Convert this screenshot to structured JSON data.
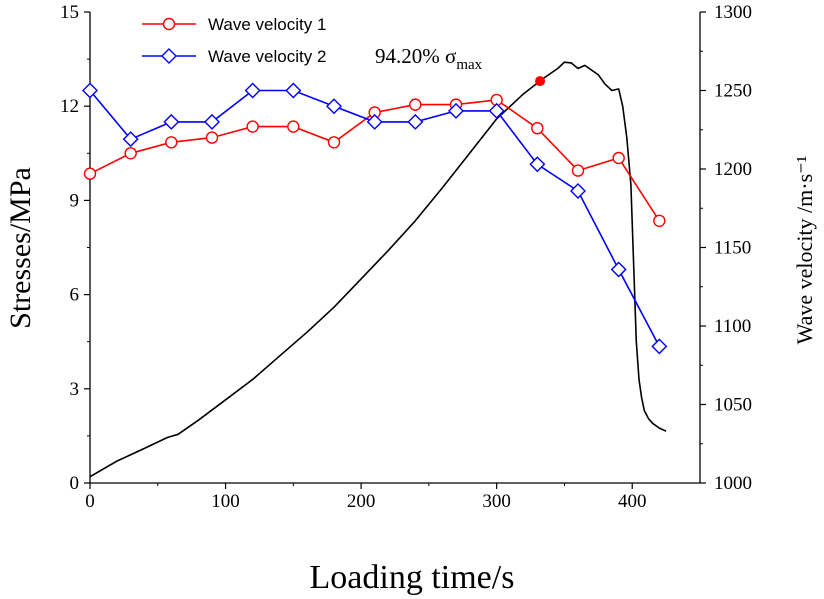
{
  "chart_data": {
    "type": "line",
    "xlabel": "Loading time/s",
    "ylabel_left": "Stresses/MPa",
    "ylabel_right": "Wave velocity /m·s⁻¹",
    "xlim": [
      0,
      450
    ],
    "ylim_left": [
      0,
      15
    ],
    "ylim_right": [
      1000,
      1300
    ],
    "xticks": [
      "0",
      "100",
      "200",
      "300",
      "400"
    ],
    "yticks_left": [
      "0",
      "3",
      "6",
      "9",
      "12",
      "15"
    ],
    "yticks_right": [
      "1000",
      "1050",
      "1100",
      "1150",
      "1200",
      "1250",
      "1300"
    ],
    "annotation": {
      "text": "94.20% σ",
      "subscript": "max",
      "x": 332,
      "y_stress": 12.8,
      "color": "#ff0000"
    },
    "stress_series": {
      "name": "Stress",
      "color": "#000000",
      "x": [
        0,
        20,
        40,
        57,
        65,
        80,
        100,
        120,
        140,
        160,
        180,
        200,
        220,
        240,
        260,
        280,
        300,
        320,
        335,
        345,
        350,
        355,
        360,
        365,
        370,
        375,
        380,
        385,
        390,
        393,
        396,
        399,
        401,
        403,
        405,
        407,
        409,
        412,
        415,
        420,
        425
      ],
      "y": [
        0.2,
        0.7,
        1.1,
        1.45,
        1.55,
        2.0,
        2.65,
        3.3,
        4.05,
        4.8,
        5.6,
        6.5,
        7.4,
        8.35,
        9.4,
        10.5,
        11.6,
        12.4,
        12.9,
        13.2,
        13.4,
        13.38,
        13.2,
        13.3,
        13.15,
        13.0,
        12.7,
        12.5,
        12.55,
        12.0,
        11.0,
        9.5,
        7.0,
        4.5,
        3.3,
        2.7,
        2.3,
        2.05,
        1.9,
        1.75,
        1.65
      ]
    },
    "velocity_series": [
      {
        "name": "Wave velocity 1",
        "color": "#ff0000",
        "marker": "circle",
        "x": [
          0,
          30,
          60,
          90,
          120,
          150,
          180,
          210,
          240,
          270,
          300,
          330,
          360,
          390,
          420
        ],
        "y": [
          1197,
          1210,
          1217,
          1220,
          1227,
          1227,
          1217,
          1236,
          1241,
          1241,
          1244,
          1226,
          1199,
          1207,
          1167
        ]
      },
      {
        "name": "Wave velocity 2",
        "color": "#0000ff",
        "marker": "diamond",
        "x": [
          0,
          30,
          60,
          90,
          120,
          150,
          180,
          210,
          240,
          270,
          300,
          330,
          360,
          390,
          420
        ],
        "y": [
          1250,
          1219,
          1230,
          1230,
          1250,
          1250,
          1240,
          1230,
          1230,
          1237,
          1237,
          1203,
          1186,
          1136,
          1087
        ]
      }
    ]
  }
}
